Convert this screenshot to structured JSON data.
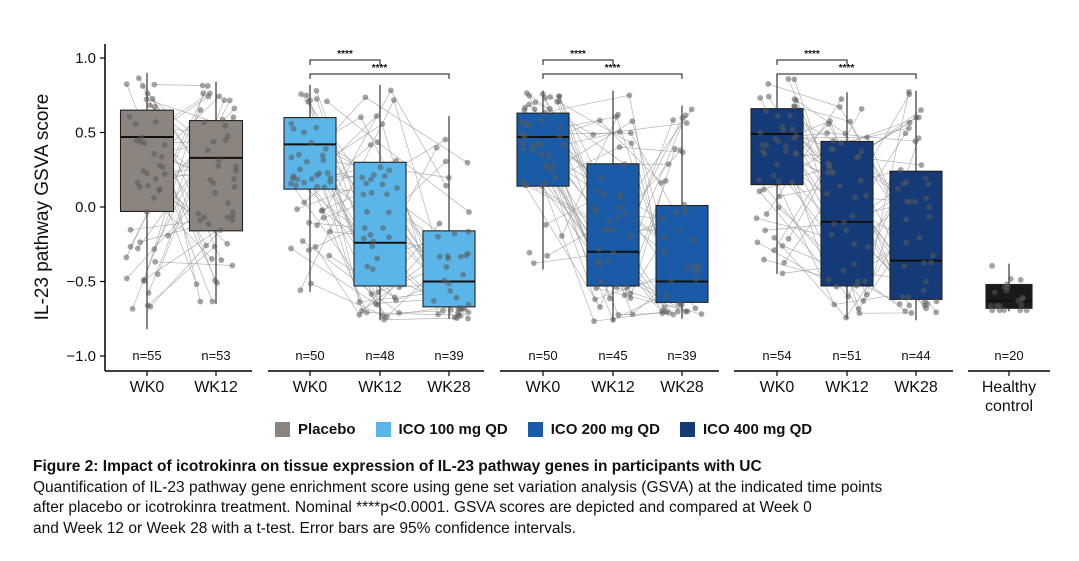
{
  "chart_data": {
    "type": "box",
    "ylabel": "IL-23 pathway GSVA score",
    "ylim": [
      -1.05,
      1.05
    ],
    "yticks": [
      1.0,
      0.5,
      0.0,
      -0.5,
      -1.0
    ],
    "ytick_labels": [
      "1.0",
      "0.5",
      "0.0",
      "−0.5",
      "−1.0"
    ],
    "colors": {
      "Placebo": "#8c847f",
      "ICO 100 mg QD": "#5ab6e8",
      "ICO 200 mg QD": "#1a5ba8",
      "ICO 400 mg QD": "#153a78",
      "Healthy control": "#1a1a1a"
    },
    "legend": [
      {
        "label": "Placebo",
        "color": "#8c847f"
      },
      {
        "label": "ICO 100 mg QD",
        "color": "#5ab6e8"
      },
      {
        "label": "ICO 200 mg QD",
        "color": "#1a5ba8"
      },
      {
        "label": "ICO 400 mg QD",
        "color": "#153a78"
      }
    ],
    "groups": [
      {
        "name": "Placebo",
        "boxes": [
          {
            "label": "WK0",
            "n": "n=55",
            "q1": -0.03,
            "median": 0.47,
            "q3": 0.65,
            "min": -0.82,
            "max": 0.9
          },
          {
            "label": "WK12",
            "n": "n=53",
            "q1": -0.16,
            "median": 0.33,
            "q3": 0.58,
            "min": -0.65,
            "max": 0.84
          }
        ]
      },
      {
        "name": "ICO 100 mg QD",
        "boxes": [
          {
            "label": "WK0",
            "n": "n=50",
            "q1": 0.12,
            "median": 0.42,
            "q3": 0.6,
            "min": -0.57,
            "max": 0.82
          },
          {
            "label": "WK12",
            "n": "n=48",
            "q1": -0.53,
            "median": -0.24,
            "q3": 0.3,
            "min": -0.76,
            "max": 0.82
          },
          {
            "label": "WK28",
            "n": "n=39",
            "q1": -0.67,
            "median": -0.5,
            "q3": -0.16,
            "min": -0.75,
            "max": 0.61
          }
        ]
      },
      {
        "name": "ICO 200 mg QD",
        "boxes": [
          {
            "label": "WK0",
            "n": "n=50",
            "q1": 0.14,
            "median": 0.47,
            "q3": 0.63,
            "min": -0.42,
            "max": 0.78
          },
          {
            "label": "WK12",
            "n": "n=45",
            "q1": -0.53,
            "median": -0.3,
            "q3": 0.29,
            "min": -0.77,
            "max": 0.78
          },
          {
            "label": "WK28",
            "n": "n=39",
            "q1": -0.64,
            "median": -0.5,
            "q3": 0.01,
            "min": -0.75,
            "max": 0.68
          }
        ]
      },
      {
        "name": "ICO 400 mg QD",
        "boxes": [
          {
            "label": "WK0",
            "n": "n=54",
            "q1": 0.15,
            "median": 0.49,
            "q3": 0.66,
            "min": -0.45,
            "max": 0.88
          },
          {
            "label": "WK12",
            "n": "n=51",
            "q1": -0.53,
            "median": -0.1,
            "q3": 0.44,
            "min": -0.75,
            "max": 0.77
          },
          {
            "label": "WK28",
            "n": "n=44",
            "q1": -0.62,
            "median": -0.36,
            "q3": 0.24,
            "min": -0.76,
            "max": 0.78
          }
        ]
      },
      {
        "name": "Healthy control",
        "boxes": [
          {
            "label": "Healthy\ncontrol",
            "n": "n=20",
            "q1": -0.68,
            "median": -0.63,
            "q3": -0.52,
            "min": -0.7,
            "max": -0.38
          }
        ]
      }
    ],
    "significance": [
      {
        "group": 1,
        "from": 0,
        "to": 1,
        "label": "****"
      },
      {
        "group": 1,
        "from": 0,
        "to": 2,
        "label": "****"
      },
      {
        "group": 2,
        "from": 0,
        "to": 1,
        "label": "****"
      },
      {
        "group": 2,
        "from": 0,
        "to": 2,
        "label": "****"
      },
      {
        "group": 3,
        "from": 0,
        "to": 1,
        "label": "****"
      },
      {
        "group": 3,
        "from": 0,
        "to": 2,
        "label": "****"
      }
    ]
  },
  "caption": {
    "title": "Figure 2: Impact of icotrokinra on tissue expression of IL-23 pathway genes in participants with UC",
    "body": "Quantification of IL-23 pathway gene enrichment score using gene set variation analysis (GSVA) at the indicated time points\nafter placebo or icotrokinra treatment. Nominal ****p<0.0001. GSVA scores are depicted and compared at Week 0\nand Week 12 or Week 28 with a t-test. Error bars are 95% confidence intervals."
  }
}
